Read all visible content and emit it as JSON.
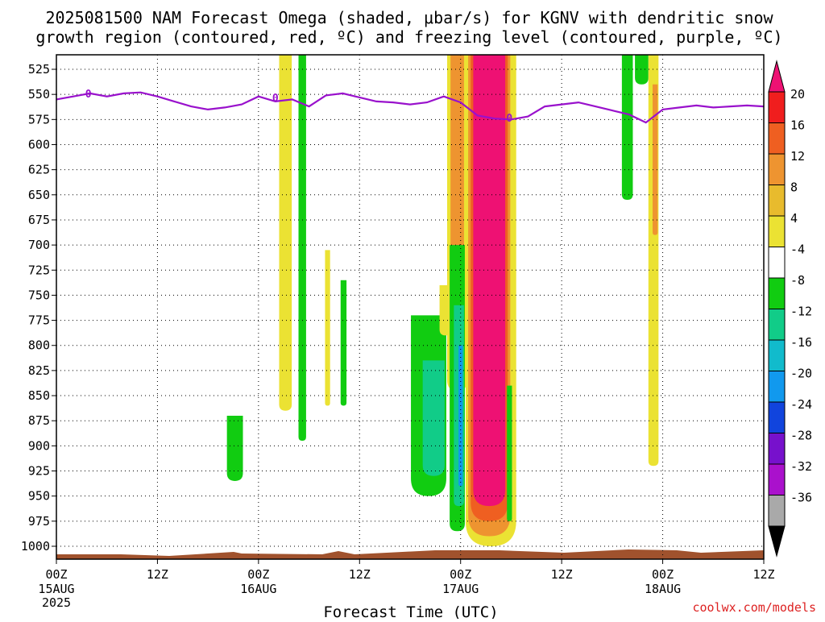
{
  "chart_data": {
    "type": "heatmap",
    "title_line1": "2025081500 NAM Forecast Omega (shaded, μbar/s) for KGNV with dendritic snow",
    "title_line2": "growth region (contoured, red, ºC) and freezing level (contoured, purple, ºC)",
    "xlabel": "Forecast Time (UTC)",
    "ylabel": "",
    "y_axis": {
      "label_values": [
        525,
        550,
        575,
        600,
        625,
        650,
        675,
        700,
        725,
        750,
        775,
        800,
        825,
        850,
        875,
        900,
        925,
        950,
        975,
        1000
      ],
      "labels": [
        "525",
        "550",
        "575",
        "600",
        "625",
        "650",
        "675",
        "700",
        "725",
        "750",
        "775",
        "800",
        "825",
        "850",
        "875",
        "900",
        "925",
        "950",
        "975",
        "1000"
      ]
    },
    "x_axis": {
      "range_hours": [
        0,
        84
      ],
      "ticks": [
        {
          "hour": 0,
          "label": "00Z",
          "sub1": "15AUG",
          "sub2": "2025"
        },
        {
          "hour": 12,
          "label": "12Z",
          "sub1": "",
          "sub2": ""
        },
        {
          "hour": 24,
          "label": "00Z",
          "sub1": "16AUG",
          "sub2": ""
        },
        {
          "hour": 36,
          "label": "12Z",
          "sub1": "",
          "sub2": ""
        },
        {
          "hour": 48,
          "label": "00Z",
          "sub1": "17AUG",
          "sub2": ""
        },
        {
          "hour": 60,
          "label": "12Z",
          "sub1": "",
          "sub2": ""
        },
        {
          "hour": 72,
          "label": "00Z",
          "sub1": "18AUG",
          "sub2": ""
        },
        {
          "hour": 84,
          "label": "12Z",
          "sub1": "",
          "sub2": ""
        }
      ]
    },
    "grid": true,
    "colorbar": {
      "levels": [
        -36,
        -32,
        -28,
        -24,
        -20,
        -16,
        -12,
        -8,
        -4,
        4,
        8,
        12,
        16,
        20
      ],
      "labels": [
        "20",
        "16",
        "12",
        "8",
        "4",
        "-4",
        "-8",
        "-12",
        "-16",
        "-20",
        "-24",
        "-28",
        "-32",
        "-36"
      ],
      "colors_top_to_bottom": [
        "#ee1173",
        "#f01e1e",
        "#ef5f21",
        "#ee9430",
        "#e8bb2d",
        "#ebe233",
        "#ffffff",
        "#11cc11",
        "#11cc88",
        "#11bbcc",
        "#1199ee",
        "#1144dd",
        "#7711cc",
        "#aa11cc",
        "#a9a9a9",
        "#000000"
      ]
    },
    "freezing_level_label": "0",
    "freezing_level_hpa": [
      {
        "h": 0,
        "p": 555
      },
      {
        "h": 2,
        "p": 552
      },
      {
        "h": 4,
        "p": 549
      },
      {
        "h": 6,
        "p": 552
      },
      {
        "h": 8,
        "p": 549
      },
      {
        "h": 10,
        "p": 548
      },
      {
        "h": 12,
        "p": 552
      },
      {
        "h": 14,
        "p": 557
      },
      {
        "h": 16,
        "p": 562
      },
      {
        "h": 18,
        "p": 565
      },
      {
        "h": 20,
        "p": 563
      },
      {
        "h": 22,
        "p": 560
      },
      {
        "h": 24,
        "p": 552
      },
      {
        "h": 26,
        "p": 557
      },
      {
        "h": 28,
        "p": 555
      },
      {
        "h": 30,
        "p": 562
      },
      {
        "h": 32,
        "p": 551
      },
      {
        "h": 34,
        "p": 549
      },
      {
        "h": 36,
        "p": 553
      },
      {
        "h": 38,
        "p": 557
      },
      {
        "h": 40,
        "p": 558
      },
      {
        "h": 42,
        "p": 560
      },
      {
        "h": 44,
        "p": 558
      },
      {
        "h": 46,
        "p": 552
      },
      {
        "h": 48,
        "p": 558
      },
      {
        "h": 50,
        "p": 571
      },
      {
        "h": 52,
        "p": 574
      },
      {
        "h": 54,
        "p": 575
      },
      {
        "h": 56,
        "p": 572
      },
      {
        "h": 58,
        "p": 562
      },
      {
        "h": 60,
        "p": 560
      },
      {
        "h": 62,
        "p": 558
      },
      {
        "h": 64,
        "p": 562
      },
      {
        "h": 66,
        "p": 566
      },
      {
        "h": 68,
        "p": 570
      },
      {
        "h": 70,
        "p": 578
      },
      {
        "h": 72,
        "p": 565
      },
      {
        "h": 74,
        "p": 563
      },
      {
        "h": 76,
        "p": 561
      },
      {
        "h": 78,
        "p": 563
      },
      {
        "h": 80,
        "p": 562
      },
      {
        "h": 82,
        "p": 561
      },
      {
        "h": 84,
        "p": 562
      }
    ],
    "omega_features": [
      {
        "color": "#ebe233",
        "h_center": 27.2,
        "h_width": 1.5,
        "p_top": 510,
        "p_bottom": 865
      },
      {
        "color": "#11cc11",
        "h_center": 29.2,
        "h_width": 0.9,
        "p_top": 510,
        "p_bottom": 895
      },
      {
        "color": "#ebe233",
        "h_center": 32.2,
        "h_width": 0.6,
        "p_top": 705,
        "p_bottom": 860
      },
      {
        "color": "#11cc11",
        "h_center": 34.1,
        "h_width": 0.7,
        "p_top": 735,
        "p_bottom": 860
      },
      {
        "color": "#11cc11",
        "h_center": 21.2,
        "h_width": 1.9,
        "p_top": 870,
        "p_bottom": 935
      },
      {
        "color": "#11cc11",
        "h_center": 44.2,
        "h_width": 4.2,
        "p_top": 770,
        "p_bottom": 950
      },
      {
        "color": "#11cc88",
        "h_center": 44.8,
        "h_width": 2.6,
        "p_top": 815,
        "p_bottom": 930
      },
      {
        "color": "#ebe233",
        "h_center": 46.2,
        "h_width": 1.4,
        "p_top": 740,
        "p_bottom": 790
      },
      {
        "color": "#ebe233",
        "h_center": 47.6,
        "h_width": 2.4,
        "p_top": 505,
        "p_bottom": 845
      },
      {
        "color": "#ee9430",
        "h_center": 47.6,
        "h_width": 1.6,
        "p_top": 505,
        "p_bottom": 775
      },
      {
        "color": "#11cc11",
        "h_center": 47.6,
        "h_width": 1.8,
        "p_top": 700,
        "p_bottom": 985
      },
      {
        "color": "#11cc88",
        "h_center": 47.8,
        "h_width": 1.2,
        "p_top": 760,
        "p_bottom": 960
      },
      {
        "color": "#1199ee",
        "h_center": 48.0,
        "h_width": 0.5,
        "p_top": 800,
        "p_bottom": 940
      },
      {
        "color": "#ebe233",
        "h_center": 51.6,
        "h_width": 6.0,
        "p_top": 505,
        "p_bottom": 1000
      },
      {
        "color": "#ee9430",
        "h_center": 51.4,
        "h_width": 5.0,
        "p_top": 505,
        "p_bottom": 990
      },
      {
        "color": "#ef5f21",
        "h_center": 51.4,
        "h_width": 4.4,
        "p_top": 505,
        "p_bottom": 975
      },
      {
        "color": "#ee1173",
        "h_center": 51.4,
        "h_width": 3.8,
        "p_top": 505,
        "p_bottom": 960
      },
      {
        "color": "#11cc11",
        "h_center": 53.8,
        "h_width": 0.6,
        "p_top": 840,
        "p_bottom": 975
      },
      {
        "color": "#11cc11",
        "h_center": 67.8,
        "h_width": 1.3,
        "p_top": 505,
        "p_bottom": 655
      },
      {
        "color": "#11cc11",
        "h_center": 69.5,
        "h_width": 1.6,
        "p_top": 505,
        "p_bottom": 540
      },
      {
        "color": "#ebe233",
        "h_center": 70.9,
        "h_width": 1.2,
        "p_top": 505,
        "p_bottom": 920
      },
      {
        "color": "#ee9430",
        "h_center": 71.1,
        "h_width": 0.6,
        "p_top": 540,
        "p_bottom": 690
      }
    ],
    "credit": "coolwx.com/models"
  }
}
